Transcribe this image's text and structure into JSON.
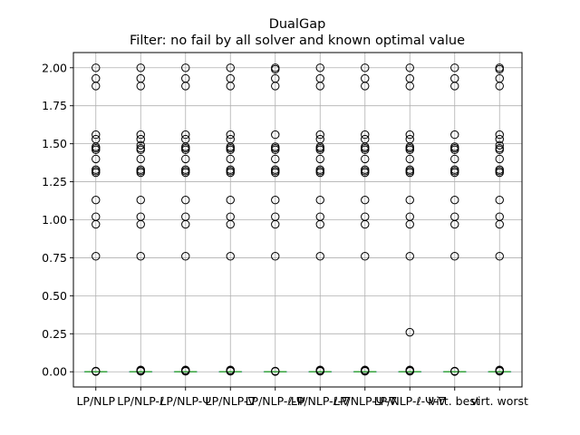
{
  "chart_data": {
    "type": "box",
    "title": "DualGap",
    "subtitle": "Filter: no fail by all solver and known optimal value",
    "xlabel": "",
    "ylabel": "",
    "ylim": [
      -0.1,
      2.1
    ],
    "yticks": [
      0.0,
      0.25,
      0.5,
      0.75,
      1.0,
      1.25,
      1.5,
      1.75,
      2.0
    ],
    "ytick_labels": [
      "0.00",
      "0.25",
      "0.50",
      "0.75",
      "1.00",
      "1.25",
      "1.50",
      "1.75",
      "2.00"
    ],
    "grid": true,
    "categories": [
      "LP/NLP",
      "LP/NLP-ℓ",
      "LP/NLP-Ψ",
      "LP/NLP-∇",
      "LP/NLP-ℓ-Ψ",
      "LP/NLP-ℓ-∇",
      "LP/NLP-Ψ-∇",
      "LP/NLP-ℓ-Ψ-∇",
      "virt. best",
      "virt. worst"
    ],
    "series": [
      {
        "median": 0.0,
        "q1": 0.0,
        "q3": 0.0,
        "whisker_low": 0.0,
        "whisker_high": 0.0,
        "outliers": [
          2.0,
          1.93,
          1.88,
          1.56,
          1.53,
          1.48,
          1.47,
          1.46,
          1.4,
          1.33,
          1.32,
          1.31,
          1.13,
          1.02,
          0.97,
          0.76,
          0.005,
          0.002
        ]
      },
      {
        "median": 0.0,
        "q1": 0.0,
        "q3": 0.0,
        "whisker_low": 0.0,
        "whisker_high": 0.0,
        "outliers": [
          2.0,
          1.93,
          1.88,
          1.56,
          1.53,
          1.49,
          1.47,
          1.46,
          1.4,
          1.33,
          1.32,
          1.31,
          1.13,
          1.02,
          0.97,
          0.76,
          0.012,
          0.007,
          0.003
        ]
      },
      {
        "median": 0.0,
        "q1": 0.0,
        "q3": 0.0,
        "whisker_low": 0.0,
        "whisker_high": 0.0,
        "outliers": [
          2.0,
          1.93,
          1.88,
          1.56,
          1.53,
          1.48,
          1.47,
          1.46,
          1.4,
          1.33,
          1.32,
          1.31,
          1.13,
          1.02,
          0.97,
          0.76,
          0.012,
          0.007,
          0.003
        ]
      },
      {
        "median": 0.0,
        "q1": 0.0,
        "q3": 0.0,
        "whisker_low": 0.0,
        "whisker_high": 0.0,
        "outliers": [
          2.0,
          1.93,
          1.88,
          1.56,
          1.53,
          1.48,
          1.47,
          1.46,
          1.4,
          1.33,
          1.32,
          1.31,
          1.13,
          1.02,
          0.97,
          0.76,
          0.012,
          0.007,
          0.003
        ]
      },
      {
        "median": 0.0,
        "q1": 0.0,
        "q3": 0.0,
        "whisker_low": 0.0,
        "whisker_high": 0.0,
        "outliers": [
          2.0,
          1.99,
          1.93,
          1.88,
          1.56,
          1.48,
          1.47,
          1.46,
          1.4,
          1.33,
          1.32,
          1.31,
          1.13,
          1.02,
          0.97,
          0.76,
          0.005,
          0.002
        ]
      },
      {
        "median": 0.0,
        "q1": 0.0,
        "q3": 0.0,
        "whisker_low": 0.0,
        "whisker_high": 0.0,
        "outliers": [
          2.0,
          1.93,
          1.88,
          1.56,
          1.53,
          1.48,
          1.47,
          1.46,
          1.4,
          1.33,
          1.32,
          1.31,
          1.13,
          1.02,
          0.97,
          0.76,
          0.012,
          0.007,
          0.003
        ]
      },
      {
        "median": 0.0,
        "q1": 0.0,
        "q3": 0.0,
        "whisker_low": 0.0,
        "whisker_high": 0.0,
        "outliers": [
          2.0,
          1.93,
          1.88,
          1.56,
          1.53,
          1.48,
          1.47,
          1.46,
          1.4,
          1.33,
          1.32,
          1.31,
          1.13,
          1.02,
          0.97,
          0.76,
          0.012,
          0.007,
          0.003
        ]
      },
      {
        "median": 0.0,
        "q1": 0.0,
        "q3": 0.0,
        "whisker_low": 0.0,
        "whisker_high": 0.0,
        "outliers": [
          2.0,
          1.93,
          1.88,
          1.56,
          1.53,
          1.48,
          1.47,
          1.46,
          1.4,
          1.33,
          1.32,
          1.31,
          1.13,
          1.02,
          0.97,
          0.76,
          0.26,
          0.012,
          0.007,
          0.003
        ]
      },
      {
        "median": 0.0,
        "q1": 0.0,
        "q3": 0.0,
        "whisker_low": 0.0,
        "whisker_high": 0.0,
        "outliers": [
          2.0,
          1.93,
          1.88,
          1.56,
          1.48,
          1.47,
          1.46,
          1.4,
          1.33,
          1.32,
          1.31,
          1.13,
          1.02,
          0.97,
          0.76,
          0.005,
          0.002
        ]
      },
      {
        "median": 0.0,
        "q1": 0.0,
        "q3": 0.0,
        "whisker_low": 0.0,
        "whisker_high": 0.0,
        "outliers": [
          2.0,
          1.99,
          1.93,
          1.88,
          1.56,
          1.53,
          1.49,
          1.47,
          1.46,
          1.4,
          1.33,
          1.32,
          1.31,
          1.13,
          1.02,
          0.97,
          0.76,
          0.012,
          0.007,
          0.003
        ]
      }
    ],
    "colors": {
      "box": "#1f77b4",
      "median": "#2ca02c",
      "flier": "#000000",
      "grid": "#b0b0b0"
    }
  }
}
